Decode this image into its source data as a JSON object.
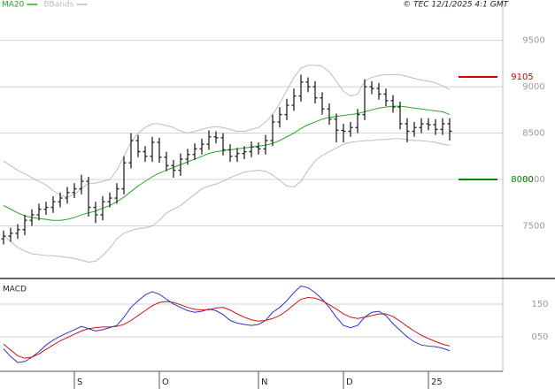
{
  "chart_data": [
    {
      "type": "ohlc",
      "source": "© TEC 12/1/2025 4:1 GMT",
      "color": "#222222",
      "open": [
        7360,
        7390,
        7420,
        7460,
        7560,
        7620,
        7680,
        7700,
        7760,
        7800,
        7860,
        7900,
        7980,
        7700,
        7620,
        7760,
        7800,
        7900,
        8180,
        8420,
        8300,
        8250,
        8400,
        8240,
        8150,
        8100,
        8220,
        8270,
        8330,
        8380,
        8460,
        8450,
        8320,
        8250,
        8280,
        8300,
        8350,
        8330,
        8420,
        8620,
        8700,
        8800,
        8900,
        9050,
        9000,
        8880,
        8760,
        8650,
        8530,
        8520,
        8560,
        8700,
        9000,
        8980,
        8920,
        8850,
        8780,
        8600,
        8520,
        8560,
        8600,
        8590,
        8540,
        8600
      ],
      "high": [
        7450,
        7480,
        7520,
        7620,
        7680,
        7740,
        7760,
        7820,
        7860,
        7920,
        7960,
        8050,
        8030,
        7760,
        7820,
        7860,
        7960,
        8250,
        8500,
        8480,
        8360,
        8460,
        8450,
        8300,
        8210,
        8280,
        8330,
        8390,
        8440,
        8530,
        8520,
        8500,
        8380,
        8340,
        8360,
        8410,
        8400,
        8480,
        8700,
        8780,
        8870,
        8980,
        9130,
        9100,
        9060,
        8940,
        8820,
        8710,
        8600,
        8620,
        8760,
        9080,
        9060,
        9040,
        8980,
        8910,
        8840,
        8660,
        8620,
        8660,
        8660,
        8650,
        8660,
        8660
      ],
      "low": [
        7300,
        7330,
        7360,
        7400,
        7500,
        7560,
        7620,
        7640,
        7700,
        7740,
        7800,
        7840,
        7600,
        7530,
        7560,
        7700,
        7740,
        7840,
        8120,
        8240,
        8190,
        8190,
        8180,
        8090,
        8020,
        8040,
        8160,
        8210,
        8270,
        8320,
        8390,
        8260,
        8190,
        8190,
        8220,
        8240,
        8270,
        8270,
        8360,
        8560,
        8640,
        8740,
        8840,
        8940,
        8820,
        8700,
        8590,
        8400,
        8400,
        8460,
        8500,
        8640,
        8920,
        8860,
        8790,
        8720,
        8540,
        8400,
        8460,
        8500,
        8530,
        8480,
        8480,
        8420
      ],
      "close": [
        7390,
        7420,
        7460,
        7560,
        7620,
        7680,
        7700,
        7760,
        7800,
        7860,
        7900,
        7980,
        7700,
        7620,
        7760,
        7800,
        7900,
        8180,
        8420,
        8300,
        8250,
        8400,
        8240,
        8150,
        8100,
        8220,
        8270,
        8330,
        8380,
        8460,
        8450,
        8320,
        8250,
        8280,
        8300,
        8350,
        8330,
        8420,
        8620,
        8700,
        8800,
        8900,
        9050,
        9000,
        8880,
        8760,
        8650,
        8530,
        8520,
        8560,
        8700,
        9000,
        8980,
        8920,
        8850,
        8780,
        8600,
        8520,
        8560,
        8600,
        8590,
        8540,
        8600,
        8520
      ],
      "series": [
        {
          "name": "MA20",
          "color": "#1faa1f",
          "values": [
            7720,
            7680,
            7640,
            7610,
            7590,
            7580,
            7570,
            7560,
            7560,
            7570,
            7590,
            7620,
            7640,
            7660,
            7690,
            7720,
            7760,
            7810,
            7870,
            7930,
            7980,
            8030,
            8070,
            8100,
            8130,
            8160,
            8190,
            8220,
            8250,
            8280,
            8300,
            8310,
            8320,
            8330,
            8340,
            8350,
            8360,
            8370,
            8390,
            8420,
            8460,
            8500,
            8550,
            8590,
            8620,
            8650,
            8670,
            8680,
            8690,
            8700,
            8710,
            8730,
            8750,
            8770,
            8780,
            8790,
            8790,
            8780,
            8770,
            8760,
            8750,
            8740,
            8730,
            8700
          ]
        },
        {
          "name": "BBands",
          "color": "#bdbdbd",
          "upper": [
            8200,
            8150,
            8100,
            8060,
            8020,
            7980,
            7940,
            7880,
            7830,
            7810,
            7840,
            7900,
            7960,
            7960,
            7980,
            8000,
            8100,
            8250,
            8400,
            8500,
            8560,
            8600,
            8600,
            8580,
            8560,
            8520,
            8500,
            8520,
            8540,
            8560,
            8570,
            8560,
            8540,
            8520,
            8520,
            8540,
            8560,
            8620,
            8700,
            8820,
            8960,
            9100,
            9200,
            9230,
            9230,
            9220,
            9160,
            9060,
            8950,
            8900,
            8920,
            9060,
            9100,
            9120,
            9130,
            9130,
            9130,
            9110,
            9090,
            9070,
            9060,
            9040,
            9010,
            8970
          ],
          "lower": [
            7400,
            7330,
            7270,
            7230,
            7200,
            7190,
            7180,
            7180,
            7170,
            7160,
            7150,
            7130,
            7110,
            7120,
            7180,
            7260,
            7360,
            7420,
            7450,
            7470,
            7480,
            7500,
            7560,
            7640,
            7680,
            7720,
            7780,
            7840,
            7900,
            7930,
            7950,
            7980,
            8020,
            8050,
            8080,
            8090,
            8100,
            8090,
            8050,
            7990,
            7930,
            7920,
            7980,
            8100,
            8200,
            8260,
            8300,
            8340,
            8380,
            8400,
            8410,
            8420,
            8420,
            8430,
            8430,
            8440,
            8440,
            8430,
            8420,
            8420,
            8410,
            8400,
            8380,
            8370
          ]
        }
      ],
      "annotations": [
        {
          "value": 9105,
          "color": "#cc0000"
        },
        {
          "value": 8000,
          "color": "#008800"
        }
      ],
      "ylim": [
        7000,
        9820
      ],
      "yticks": [
        7500,
        8000,
        8500,
        9000,
        9500
      ],
      "grid": true
    },
    {
      "type": "macd",
      "title": "MACD",
      "categories": [
        null,
        null,
        null,
        null,
        null,
        null,
        null,
        null,
        null,
        null,
        "S",
        null,
        null,
        null,
        null,
        null,
        null,
        null,
        null,
        null,
        null,
        null,
        "O",
        null,
        null,
        null,
        null,
        null,
        null,
        null,
        null,
        null,
        null,
        null,
        null,
        null,
        "N",
        null,
        null,
        null,
        null,
        null,
        null,
        null,
        null,
        null,
        null,
        null,
        "D",
        null,
        null,
        null,
        null,
        null,
        null,
        null,
        null,
        null,
        null,
        null,
        "25",
        null,
        null,
        null
      ],
      "series": [
        {
          "color": "#2a35cc",
          "values": [
            14,
            -10,
            -28,
            -25,
            -12,
            5,
            25,
            40,
            52,
            62,
            72,
            82,
            75,
            68,
            72,
            78,
            85,
            110,
            140,
            160,
            178,
            188,
            180,
            165,
            150,
            140,
            130,
            125,
            128,
            135,
            130,
            118,
            100,
            92,
            88,
            85,
            88,
            100,
            125,
            140,
            160,
            185,
            205,
            200,
            185,
            165,
            140,
            110,
            85,
            78,
            85,
            110,
            125,
            128,
            115,
            90,
            70,
            50,
            35,
            25,
            22,
            20,
            15,
            8
          ]
        },
        {
          "color": "#cc1111",
          "values": [
            28,
            10,
            -8,
            -15,
            -12,
            -2,
            12,
            25,
            38,
            48,
            58,
            68,
            75,
            78,
            80,
            80,
            82,
            88,
            100,
            115,
            130,
            145,
            155,
            158,
            155,
            148,
            140,
            134,
            132,
            133,
            138,
            140,
            132,
            120,
            110,
            102,
            98,
            100,
            106,
            115,
            130,
            148,
            165,
            170,
            168,
            160,
            148,
            135,
            120,
            110,
            106,
            110,
            115,
            120,
            120,
            112,
            98,
            82,
            68,
            55,
            45,
            36,
            28,
            22
          ]
        }
      ],
      "ylim": [
        -55,
        220
      ],
      "yticks": [
        150,
        {
          "value": 50,
          "label": "050"
        }
      ],
      "grid": true
    }
  ]
}
